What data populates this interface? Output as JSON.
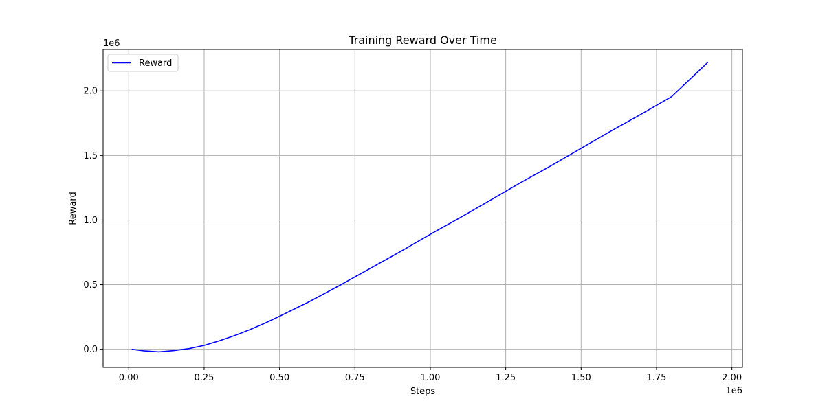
{
  "chart_data": {
    "type": "line",
    "title": "Training Reward Over Time",
    "xlabel": "Steps",
    "ylabel": "Reward",
    "x_offset_label": "1e6",
    "y_offset_label": "1e6",
    "xlim": [
      -0.085,
      2.035
    ],
    "ylim": [
      -0.14,
      2.32
    ],
    "x_ticks": [
      0.0,
      0.25,
      0.5,
      0.75,
      1.0,
      1.25,
      1.5,
      1.75,
      2.0
    ],
    "x_tick_labels": [
      "0.00",
      "0.25",
      "0.50",
      "0.75",
      "1.00",
      "1.25",
      "1.50",
      "1.75",
      "2.00"
    ],
    "y_ticks": [
      0.0,
      0.5,
      1.0,
      1.5,
      2.0
    ],
    "y_tick_labels": [
      "0.0",
      "0.5",
      "1.0",
      "1.5",
      "2.0"
    ],
    "grid": true,
    "legend_position": "top-left",
    "series": [
      {
        "name": "Reward",
        "color": "#0000ff",
        "x": [
          0.01,
          0.05,
          0.1,
          0.15,
          0.2,
          0.25,
          0.3,
          0.35,
          0.4,
          0.45,
          0.5,
          0.6,
          0.7,
          0.75,
          0.8,
          0.9,
          1.0,
          1.1,
          1.2,
          1.3,
          1.4,
          1.5,
          1.6,
          1.7,
          1.8,
          1.92
        ],
        "y": [
          0.0,
          -0.012,
          -0.02,
          -0.01,
          0.005,
          0.03,
          0.065,
          0.105,
          0.15,
          0.2,
          0.255,
          0.37,
          0.495,
          0.56,
          0.625,
          0.755,
          0.89,
          1.02,
          1.155,
          1.29,
          1.42,
          1.555,
          1.69,
          1.82,
          1.955,
          2.22
        ]
      }
    ]
  }
}
